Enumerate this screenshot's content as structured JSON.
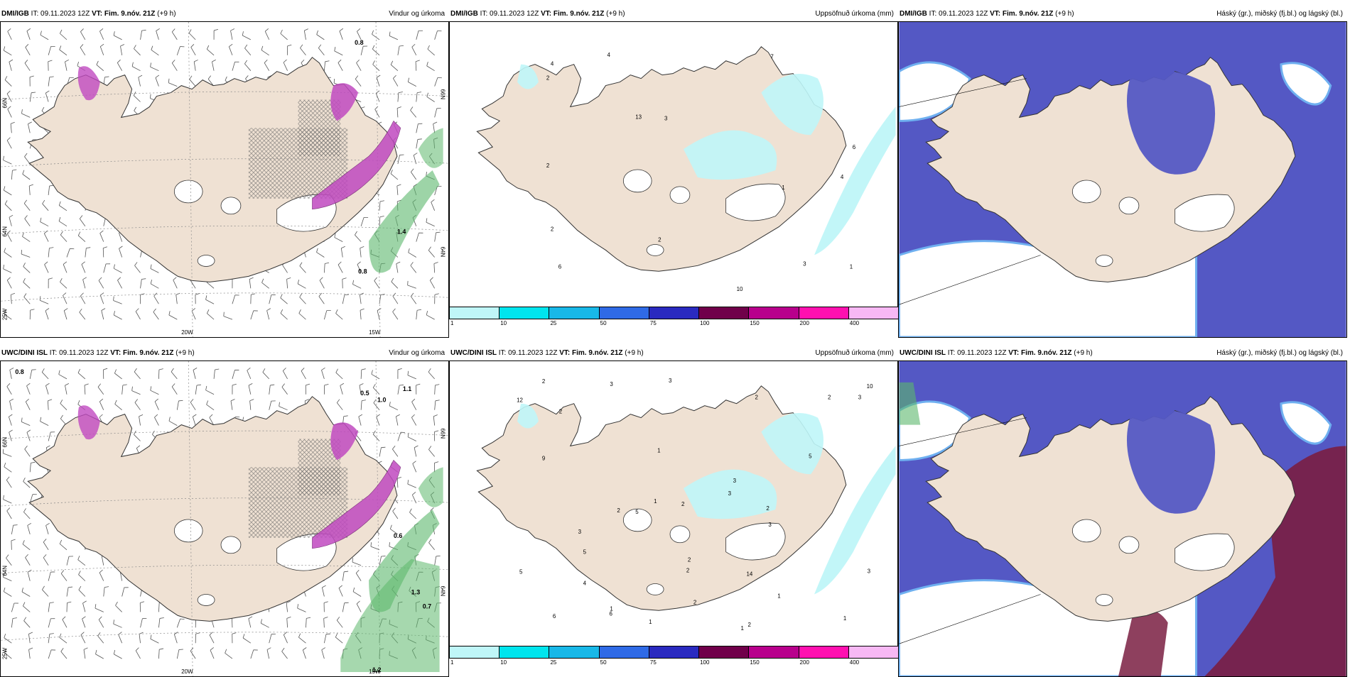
{
  "panels": [
    {
      "id": "p1",
      "source": "DMI/IGB",
      "meta": "IT: 09.11.2023 12Z",
      "vt": "VT: Fim. 9.nóv. 21Z",
      "offset": "(+9 h)",
      "field": "Vindur og úrkoma"
    },
    {
      "id": "p2",
      "source": "DMI/IGB",
      "meta": "IT: 09.11.2023 12Z",
      "vt": "VT: Fim. 9.nóv. 21Z",
      "offset": "(+9 h)",
      "field": "Uppsöfnuð úrkoma (mm)"
    },
    {
      "id": "p3",
      "source": "DMI/IGB",
      "meta": "IT: 09.11.2023 12Z",
      "vt": "VT: Fim. 9.nóv. 21Z",
      "offset": "(+9 h)",
      "field": "Háský (gr.), miðský (fj.bl.) og lágský (bl.)"
    },
    {
      "id": "p4",
      "source": "UWC/DINI ISL",
      "meta": "IT: 09.11.2023 12Z",
      "vt": "VT: Fim. 9.nóv. 21Z",
      "offset": "(+9 h)",
      "field": "Vindur og úrkoma"
    },
    {
      "id": "p5",
      "source": "UWC/DINI ISL",
      "meta": "IT: 09.11.2023 12Z",
      "vt": "VT: Fim. 9.nóv. 21Z",
      "offset": "(+9 h)",
      "field": "Uppsöfnuð úrkoma (mm)"
    },
    {
      "id": "p6",
      "source": "UWC/DINI ISL",
      "meta": "IT: 09.11.2023 12Z",
      "vt": "VT: Fim. 9.nóv. 21Z",
      "offset": "(+9 h)",
      "field": "Háský (gr.), miðský (fj.bl.) og lágský (bl.)"
    }
  ],
  "grid_labels": {
    "lat_66": "66N",
    "lat_64": "64N",
    "lon_20": "20W",
    "lon_15": "15W",
    "lon_25": "25W"
  },
  "wind_values_top": [
    "0.8",
    "1.4",
    "0.8"
  ],
  "wind_values_bottom": [
    "0.8",
    "0.5",
    "1.0",
    "1.1",
    "0.6",
    "1.3",
    "0.7",
    "1.2"
  ],
  "precip_values_top": [
    "1",
    "4",
    "6",
    "4",
    "3",
    "3",
    "2",
    "7",
    "13",
    "10",
    "2",
    "2",
    "4",
    "1",
    "2",
    "6"
  ],
  "precip_values_bottom": [
    "1",
    "1",
    "1",
    "1",
    "3",
    "2",
    "2",
    "1",
    "3",
    "1",
    "2",
    "2",
    "1",
    "2",
    "2",
    "3",
    "9",
    "6",
    "5",
    "12",
    "14",
    "10",
    "3",
    "6",
    "5",
    "3",
    "5",
    "5",
    "2",
    "3",
    "2",
    "2",
    "2",
    "3",
    "4",
    "2",
    "3"
  ],
  "colorbar": {
    "ticks": [
      "1",
      "10",
      "25",
      "50",
      "75",
      "100",
      "150",
      "200",
      "400"
    ],
    "colors": [
      "#bff6f8",
      "#00e5ee",
      "#18b8e8",
      "#2f6ae6",
      "#2a2ac0",
      "#70004a",
      "#b8008c",
      "#ff10b0",
      "#f7b8f4"
    ]
  },
  "colors": {
    "land": "#efe1d3",
    "coast": "#333333",
    "cloud_high": "#5458c4",
    "cloud_edge": "#6fb0f0",
    "cloud_low": "#7a1e42",
    "precip_pink": "#c04ac0",
    "precip_green": "#5cb86c",
    "precip_cyan": "#bff6f8"
  }
}
